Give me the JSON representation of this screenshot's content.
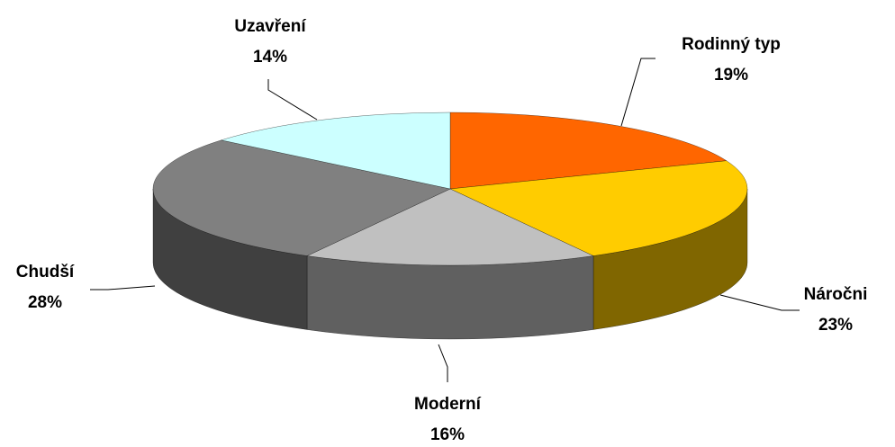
{
  "chart_data": {
    "type": "pie3d",
    "categories": [
      "Rodinný typ",
      "Náročni",
      "Moderní",
      "Chudší",
      "Uzavření"
    ],
    "values": [
      19,
      23,
      16,
      28,
      14
    ],
    "value_labels": [
      "19%",
      "23%",
      "16%",
      "28%",
      "14%"
    ],
    "colors": [
      "#ff6600",
      "#ffcc00",
      "#c0c0c0",
      "#808080",
      "#ccffff"
    ]
  }
}
